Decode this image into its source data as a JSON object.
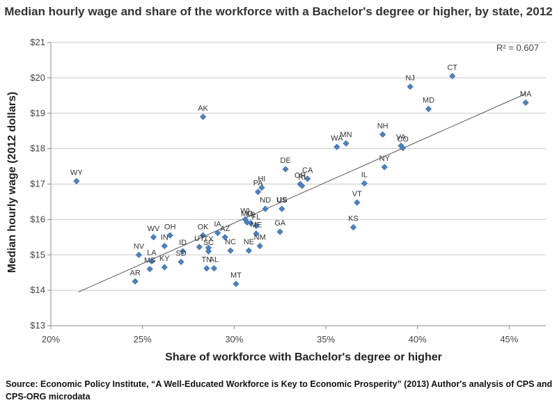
{
  "chart_data": {
    "type": "scatter",
    "title": "Median hourly wage and share of the workforce with a Bachelor's degree or higher, by state, 2012",
    "xlabel": "Share of workforce with Bachelor's degree or higher",
    "ylabel": "Median hourly wage (2012 dollars)",
    "xlim": [
      20,
      47
    ],
    "ylim": [
      13,
      21
    ],
    "x_ticks": [
      20,
      25,
      30,
      35,
      40,
      45
    ],
    "x_tick_labels": [
      "20%",
      "25%",
      "30%",
      "35%",
      "40%",
      "45%"
    ],
    "y_ticks": [
      13,
      14,
      15,
      16,
      17,
      18,
      19,
      20,
      21
    ],
    "y_tick_labels": [
      "$13",
      "$14",
      "$15",
      "$16",
      "$17",
      "$18",
      "$19",
      "$20",
      "$21"
    ],
    "annotation": "R² = 0.607",
    "trendline": {
      "x": [
        21.5,
        45.9
      ],
      "y": [
        13.95,
        19.55
      ]
    },
    "marker_color": "#4f81bd",
    "points": [
      {
        "label": "WY",
        "x": 21.4,
        "y": 17.08
      },
      {
        "label": "AK",
        "x": 28.3,
        "y": 18.9
      },
      {
        "label": "NV",
        "x": 24.8,
        "y": 15.0
      },
      {
        "label": "WV",
        "x": 25.6,
        "y": 15.5
      },
      {
        "label": "OH",
        "x": 26.5,
        "y": 15.55
      },
      {
        "label": "IN",
        "x": 26.2,
        "y": 15.25
      },
      {
        "label": "LA",
        "x": 25.5,
        "y": 14.82
      },
      {
        "label": "MS",
        "x": 25.4,
        "y": 14.6
      },
      {
        "label": "KY",
        "x": 26.2,
        "y": 14.65
      },
      {
        "label": "AR",
        "x": 24.6,
        "y": 14.25
      },
      {
        "label": "ID",
        "x": 27.2,
        "y": 15.1
      },
      {
        "label": "SD",
        "x": 27.1,
        "y": 14.8
      },
      {
        "label": "UT",
        "x": 28.1,
        "y": 15.22
      },
      {
        "label": "OK",
        "x": 28.3,
        "y": 15.55
      },
      {
        "label": "TX",
        "x": 28.6,
        "y": 15.2
      },
      {
        "label": "SC",
        "x": 28.6,
        "y": 15.1
      },
      {
        "label": "TN",
        "x": 28.5,
        "y": 14.62
      },
      {
        "label": "AL",
        "x": 28.9,
        "y": 14.62
      },
      {
        "label": "IA",
        "x": 29.1,
        "y": 15.62
      },
      {
        "label": "AZ",
        "x": 29.5,
        "y": 15.5
      },
      {
        "label": "NC",
        "x": 29.8,
        "y": 15.12
      },
      {
        "label": "MT",
        "x": 30.1,
        "y": 14.18
      },
      {
        "label": "WI",
        "x": 30.6,
        "y": 16.0
      },
      {
        "label": "MO",
        "x": 30.7,
        "y": 15.92
      },
      {
        "label": "MI",
        "x": 30.9,
        "y": 15.9
      },
      {
        "label": "FL",
        "x": 31.2,
        "y": 15.82
      },
      {
        "label": "ME",
        "x": 31.2,
        "y": 15.6
      },
      {
        "label": "NE",
        "x": 30.8,
        "y": 15.12
      },
      {
        "label": "NM",
        "x": 31.4,
        "y": 15.25
      },
      {
        "label": "PA",
        "x": 31.3,
        "y": 16.78
      },
      {
        "label": "HI",
        "x": 31.5,
        "y": 16.9
      },
      {
        "label": "ND",
        "x": 31.7,
        "y": 16.3
      },
      {
        "label": "US",
        "x": 32.6,
        "y": 16.3
      },
      {
        "label": "GA",
        "x": 32.5,
        "y": 15.65
      },
      {
        "label": "DE",
        "x": 32.8,
        "y": 17.42
      },
      {
        "label": "OR",
        "x": 33.6,
        "y": 17.0
      },
      {
        "label": "RI",
        "x": 33.7,
        "y": 16.95
      },
      {
        "label": "CA",
        "x": 34.0,
        "y": 17.15
      },
      {
        "label": "WA",
        "x": 35.6,
        "y": 18.05
      },
      {
        "label": "MN",
        "x": 36.1,
        "y": 18.15
      },
      {
        "label": "VT",
        "x": 36.7,
        "y": 16.48
      },
      {
        "label": "KS",
        "x": 36.5,
        "y": 15.78
      },
      {
        "label": "IL",
        "x": 37.1,
        "y": 17.02
      },
      {
        "label": "NY",
        "x": 38.2,
        "y": 17.48
      },
      {
        "label": "NH",
        "x": 38.1,
        "y": 18.4
      },
      {
        "label": "VA",
        "x": 39.1,
        "y": 18.08
      },
      {
        "label": "CO",
        "x": 39.2,
        "y": 18.02
      },
      {
        "label": "NJ",
        "x": 39.6,
        "y": 19.75
      },
      {
        "label": "MD",
        "x": 40.6,
        "y": 19.12
      },
      {
        "label": "CT",
        "x": 41.9,
        "y": 20.05
      },
      {
        "label": "MA",
        "x": 45.9,
        "y": 19.3
      }
    ]
  },
  "source": "Source:  Economic Policy Institute, “A Well-Educated Workforce is Key to Economic Prosperity” (2013) Author's analysis of CPS and CPS-ORG microdata"
}
